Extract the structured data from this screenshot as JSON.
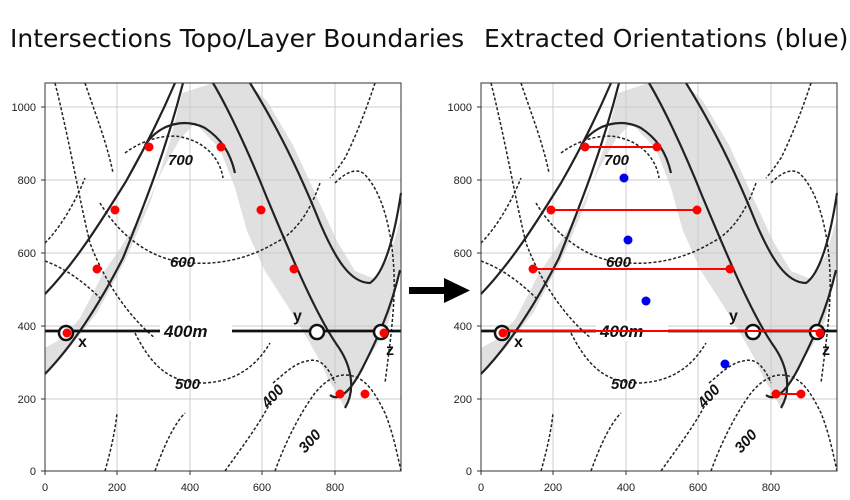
{
  "titles": {
    "left": "Intersections Topo/Layer Boundaries",
    "right": "Extracted Orientations (blue)"
  },
  "axes": {
    "x_ticks": [
      "0",
      "200",
      "400",
      "600",
      "800"
    ],
    "y_ticks": [
      "0",
      "200",
      "400",
      "600",
      "800",
      "1000"
    ]
  },
  "contour_labels": {
    "c700": "700",
    "c600": "600",
    "c500": "500",
    "c400": "400",
    "c300": "300",
    "c400m": "400m"
  },
  "point_labels": {
    "x": "x",
    "y": "y",
    "z": "z"
  },
  "colors": {
    "intersection": "#ff0000",
    "orientation": "#0000ee",
    "layer_fill": "#e0e0e0",
    "grid": "#cccccc",
    "arrow": "#000000"
  },
  "icons": {
    "arrow": "arrow-right-icon"
  }
}
